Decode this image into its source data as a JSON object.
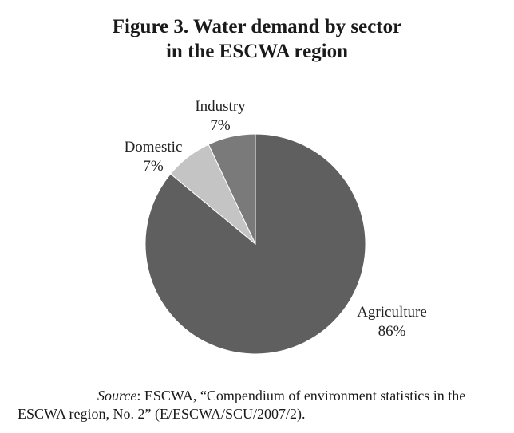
{
  "figure": {
    "title_line1": "Figure 3.  Water demand by sector",
    "title_line2": "in the ESCWA region"
  },
  "chart_data": {
    "type": "pie",
    "title": "Figure 3.  Water demand by sector in the ESCWA region",
    "slices": [
      {
        "label": "Agriculture",
        "value": 86,
        "display": "86%",
        "color": "#5f5f5f"
      },
      {
        "label": "Domestic",
        "value": 7,
        "display": "7%",
        "color": "#c4c4c4"
      },
      {
        "label": "Industry",
        "value": 7,
        "display": "7%",
        "color": "#7a7a7a"
      }
    ],
    "legend": "none",
    "labels_outside": true
  },
  "source": {
    "prefix": "Source",
    "text": ": ESCWA, “Compendium of environment statistics in the ESCWA region, No. 2” (E/ESCWA/SCU/2007/2)."
  }
}
